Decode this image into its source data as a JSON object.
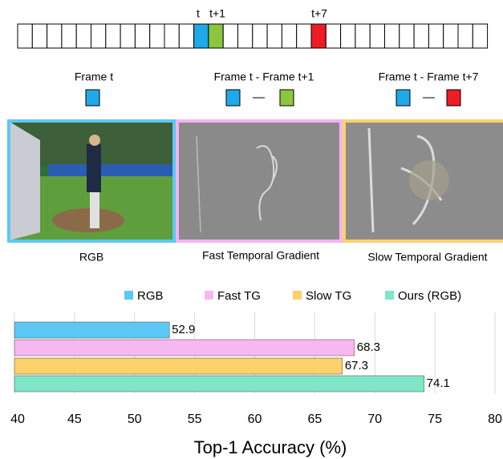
{
  "diagram": {
    "strip_labels": [
      "t",
      "t+1",
      "t+7"
    ],
    "frame_labels": [
      "Frame t",
      "Frame t - Frame t+1",
      "Frame t - Frame t+7"
    ],
    "captions": [
      "RGB",
      "Fast Temporal Gradient",
      "Slow Temporal Gradient"
    ]
  },
  "chart_data": {
    "type": "hbar",
    "xlabel": "Top-1 Accuracy (%)",
    "xlim": [
      40,
      80
    ],
    "xticks": [
      40,
      45,
      50,
      55,
      60,
      65,
      70,
      75,
      80
    ],
    "grid": true,
    "legend": "top",
    "series": [
      {
        "name": "RGB",
        "color": "#5bc8f5",
        "values": [
          52.9
        ]
      },
      {
        "name": "Fast TG",
        "color": "#f7b7f0",
        "values": [
          68.3
        ]
      },
      {
        "name": "Slow TG",
        "color": "#fbd26a",
        "values": [
          67.3
        ]
      },
      {
        "name": "Ours (RGB)",
        "color": "#7fe6c8",
        "values": [
          74.1
        ]
      }
    ]
  }
}
